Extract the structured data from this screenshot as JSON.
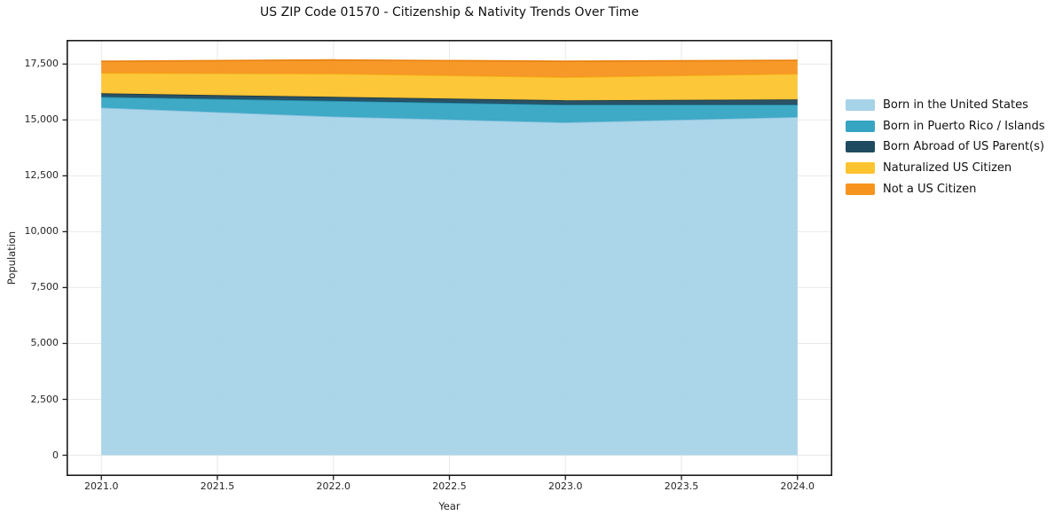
{
  "title": "US ZIP Code 01570 - Citizenship & Nativity Trends Over Time",
  "chart_data": {
    "type": "area",
    "stacked": true,
    "title": "US ZIP Code 01570 - Citizenship & Nativity Trends Over Time",
    "xlabel": "Year",
    "ylabel": "Population",
    "x": [
      2021,
      2022,
      2023,
      2024
    ],
    "series": [
      {
        "name": "Born in the United States",
        "values": [
          15550,
          15150,
          14890,
          15130
        ],
        "color": "#a6d3e8",
        "edge": "#85c1dd"
      },
      {
        "name": "Born in Puerto Rico / Islands",
        "values": [
          480,
          700,
          790,
          550
        ],
        "color": "#35a5c3",
        "edge": "#2590ad"
      },
      {
        "name": "Born Abroad of US Parent(s)",
        "values": [
          160,
          180,
          195,
          235
        ],
        "color": "#1f4a5f",
        "edge": "#163848"
      },
      {
        "name": "Naturalized US Citizen",
        "values": [
          910,
          1040,
          1035,
          1150
        ],
        "color": "#fdc42f",
        "edge": "#f4b11c"
      },
      {
        "name": "Not a US Citizen",
        "values": [
          520,
          610,
          710,
          600
        ],
        "color": "#f7941e",
        "edge": "#ea8313"
      }
    ],
    "x_ticks": [
      {
        "v": 2021.0,
        "label": "2021.0"
      },
      {
        "v": 2021.5,
        "label": "2021.5"
      },
      {
        "v": 2022.0,
        "label": "2022.0"
      },
      {
        "v": 2022.5,
        "label": "2022.5"
      },
      {
        "v": 2023.0,
        "label": "2023.0"
      },
      {
        "v": 2023.5,
        "label": "2023.5"
      },
      {
        "v": 2024.0,
        "label": "2024.0"
      }
    ],
    "y_ticks": [
      {
        "v": 0,
        "label": "0"
      },
      {
        "v": 2500,
        "label": "2,500"
      },
      {
        "v": 5000,
        "label": "5,000"
      },
      {
        "v": 7500,
        "label": "7,500"
      },
      {
        "v": 10000,
        "label": "10,000"
      },
      {
        "v": 12500,
        "label": "12,500"
      },
      {
        "v": 15000,
        "label": "15,000"
      },
      {
        "v": 17500,
        "label": "17,500"
      }
    ],
    "xlim": [
      2020.85,
      2024.15
    ],
    "ylim": [
      -930,
      18580
    ],
    "grid": true,
    "legend_position": "right-outside",
    "colors": {
      "grid": "#e9e9e9",
      "spine": "#1a1a1a",
      "background": "#ffffff",
      "text": "#262626"
    }
  }
}
